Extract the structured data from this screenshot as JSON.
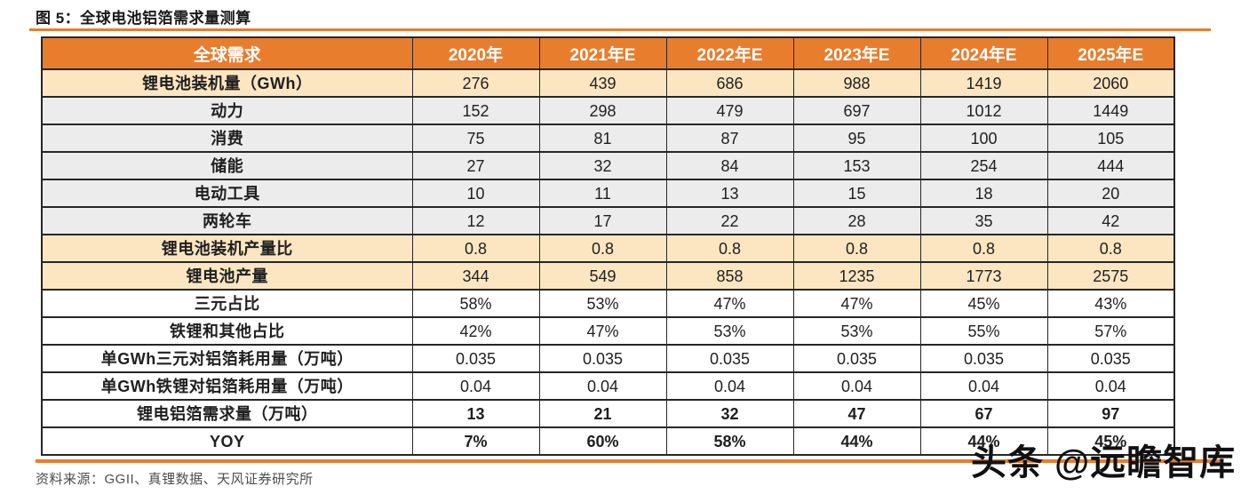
{
  "title": "图 5：全球电池铝箔需求量测算",
  "table": {
    "header": [
      "全球需求",
      "2020年",
      "2021年E",
      "2022年E",
      "2023年E",
      "2024年E",
      "2025年E"
    ],
    "rows": [
      {
        "label": "锂电池装机量（GWh）",
        "values": [
          "276",
          "439",
          "686",
          "988",
          "1419",
          "2060"
        ],
        "style": "yellow"
      },
      {
        "label": "动力",
        "values": [
          "152",
          "298",
          "479",
          "697",
          "1012",
          "1449"
        ],
        "style": "gray"
      },
      {
        "label": "消费",
        "values": [
          "75",
          "81",
          "87",
          "95",
          "100",
          "105"
        ],
        "style": "gray"
      },
      {
        "label": "储能",
        "values": [
          "27",
          "32",
          "84",
          "153",
          "254",
          "444"
        ],
        "style": "gray"
      },
      {
        "label": "电动工具",
        "values": [
          "10",
          "11",
          "13",
          "15",
          "18",
          "20"
        ],
        "style": "gray"
      },
      {
        "label": "两轮车",
        "values": [
          "12",
          "17",
          "22",
          "28",
          "35",
          "42"
        ],
        "style": "gray"
      },
      {
        "label": "锂电池装机产量比",
        "values": [
          "0.8",
          "0.8",
          "0.8",
          "0.8",
          "0.8",
          "0.8"
        ],
        "style": "yellow"
      },
      {
        "label": "锂电池产量",
        "values": [
          "344",
          "549",
          "858",
          "1235",
          "1773",
          "2575"
        ],
        "style": "yellow"
      },
      {
        "label": "三元占比",
        "values": [
          "58%",
          "53%",
          "47%",
          "47%",
          "45%",
          "43%"
        ],
        "style": "white"
      },
      {
        "label": "铁锂和其他占比",
        "values": [
          "42%",
          "47%",
          "53%",
          "53%",
          "55%",
          "57%"
        ],
        "style": "white"
      },
      {
        "label": "单GWh三元对铝箔耗用量（万吨）",
        "values": [
          "0.035",
          "0.035",
          "0.035",
          "0.035",
          "0.035",
          "0.035"
        ],
        "style": "white"
      },
      {
        "label": "单GWh铁锂对铝箔耗用量（万吨）",
        "values": [
          "0.04",
          "0.04",
          "0.04",
          "0.04",
          "0.04",
          "0.04"
        ],
        "style": "white"
      },
      {
        "label": "锂电铝箔需求量（万吨）",
        "values": [
          "13",
          "21",
          "32",
          "47",
          "67",
          "97"
        ],
        "style": "bold"
      },
      {
        "label": "YOY",
        "values": [
          "7%",
          "60%",
          "58%",
          "44%",
          "44%",
          "45%"
        ],
        "style": "bold"
      }
    ]
  },
  "source": "资料来源：GGII、真锂数据、天风证券研究所",
  "watermark": "头条 @远瞻智库",
  "colors": {
    "accent_orange": "#E87D2E",
    "row_yellow": "#FBE6C1",
    "row_gray": "#ECECEC",
    "border": "#262626",
    "header_text": "#FFFFFF",
    "source_text": "#4D4D4D",
    "watermark_text": "#111111"
  }
}
